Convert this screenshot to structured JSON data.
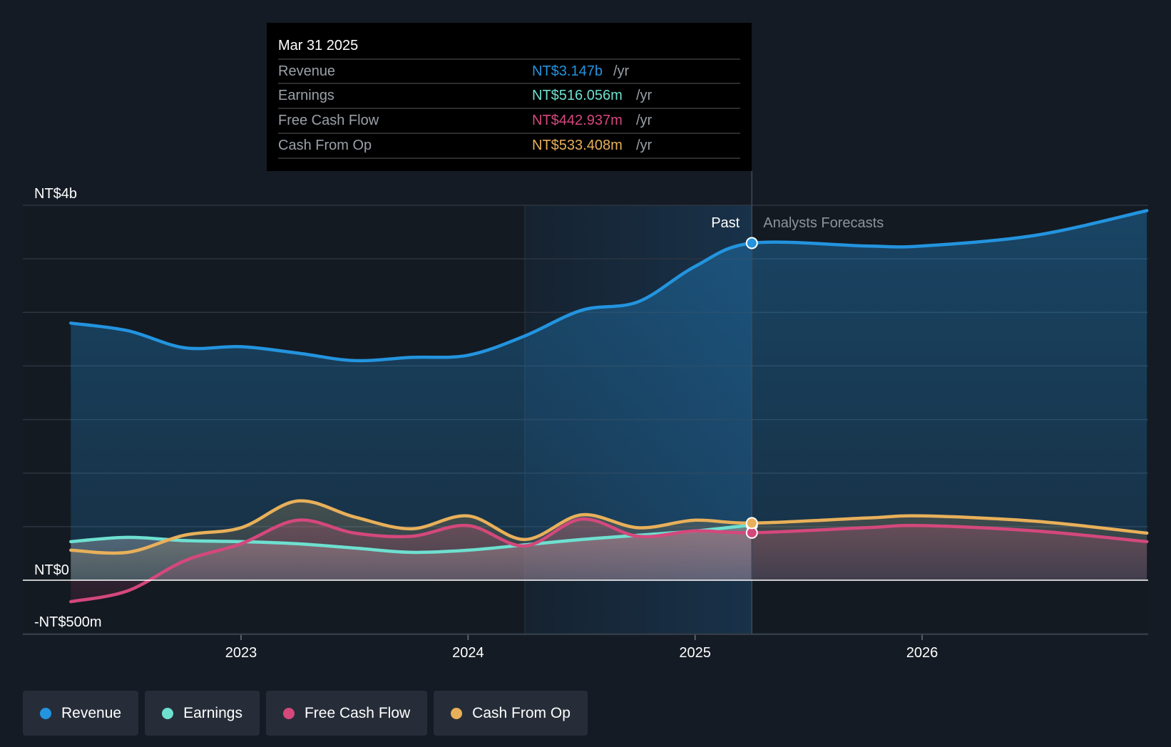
{
  "colors": {
    "revenue": "#2394df",
    "earnings": "#6ee0d0",
    "fcf": "#d4487c",
    "cfo": "#e8b05a",
    "background": "#151b24"
  },
  "tooltip": {
    "date": "Mar 31 2025",
    "rows": [
      {
        "label": "Revenue",
        "value": "NT$3.147b",
        "unit": "/yr",
        "key": "revenue"
      },
      {
        "label": "Earnings",
        "value": "NT$516.056m",
        "unit": "/yr",
        "key": "earnings"
      },
      {
        "label": "Free Cash Flow",
        "value": "NT$442.937m",
        "unit": "/yr",
        "key": "fcf"
      },
      {
        "label": "Cash From Op",
        "value": "NT$533.408m",
        "unit": "/yr",
        "key": "cfo"
      }
    ]
  },
  "labels": {
    "past": "Past",
    "forecast": "Analysts Forecasts"
  },
  "legend": [
    {
      "label": "Revenue",
      "key": "revenue"
    },
    {
      "label": "Earnings",
      "key": "earnings"
    },
    {
      "label": "Free Cash Flow",
      "key": "fcf"
    },
    {
      "label": "Cash From Op",
      "key": "cfo"
    }
  ],
  "chart_data": {
    "type": "line",
    "title": "",
    "xlabel": "",
    "ylabel": "",
    "units": "NT$ billions",
    "ylim": [
      -0.5,
      3.5
    ],
    "y_tick_labels": [
      {
        "value": 3.5,
        "label": "NT$4b"
      },
      {
        "value": 0,
        "label": "NT$0"
      },
      {
        "value": -0.5,
        "label": "-NT$500m"
      }
    ],
    "x_ticks": [
      {
        "value": 2023.0,
        "label": "2023"
      },
      {
        "value": 2024.0,
        "label": "2024"
      },
      {
        "value": 2025.0,
        "label": "2025"
      },
      {
        "value": 2026.0,
        "label": "2026"
      }
    ],
    "xlim": [
      2022.04,
      2026.99
    ],
    "past_end": 2025.25,
    "shade_start": 2024.25,
    "series": [
      {
        "name": "Revenue",
        "key": "revenue",
        "x": [
          2022.25,
          2022.5,
          2022.75,
          2023.0,
          2023.25,
          2023.5,
          2023.75,
          2024.0,
          2024.25,
          2024.5,
          2024.75,
          2025.0,
          2025.25,
          2025.75,
          2026.0,
          2026.5,
          2026.99
        ],
        "values": [
          2.4,
          2.33,
          2.17,
          2.18,
          2.12,
          2.05,
          2.08,
          2.1,
          2.28,
          2.52,
          2.6,
          2.93,
          3.147,
          3.12,
          3.12,
          3.22,
          3.45
        ]
      },
      {
        "name": "Earnings",
        "key": "earnings",
        "x": [
          2022.25,
          2022.5,
          2022.75,
          2023.0,
          2023.25,
          2023.5,
          2023.75,
          2024.0,
          2024.25,
          2024.5,
          2024.75,
          2025.0,
          2025.25
        ],
        "values": [
          0.36,
          0.4,
          0.37,
          0.36,
          0.34,
          0.3,
          0.26,
          0.28,
          0.33,
          0.38,
          0.42,
          0.46,
          0.516
        ]
      },
      {
        "name": "Free Cash Flow",
        "key": "fcf",
        "x": [
          2022.25,
          2022.5,
          2022.75,
          2023.0,
          2023.25,
          2023.5,
          2023.75,
          2024.0,
          2024.25,
          2024.5,
          2024.75,
          2025.0,
          2025.25,
          2025.75,
          2026.0,
          2026.5,
          2026.99
        ],
        "values": [
          -0.2,
          -0.1,
          0.18,
          0.34,
          0.56,
          0.44,
          0.41,
          0.51,
          0.32,
          0.57,
          0.41,
          0.46,
          0.443,
          0.49,
          0.51,
          0.46,
          0.36
        ]
      },
      {
        "name": "Cash From Op",
        "key": "cfo",
        "x": [
          2022.25,
          2022.5,
          2022.75,
          2023.0,
          2023.25,
          2023.5,
          2023.75,
          2024.0,
          2024.25,
          2024.5,
          2024.75,
          2025.0,
          2025.25,
          2025.75,
          2026.0,
          2026.5,
          2026.99
        ],
        "values": [
          0.28,
          0.26,
          0.42,
          0.49,
          0.74,
          0.59,
          0.48,
          0.6,
          0.38,
          0.61,
          0.49,
          0.56,
          0.533,
          0.58,
          0.6,
          0.55,
          0.44
        ]
      }
    ]
  }
}
